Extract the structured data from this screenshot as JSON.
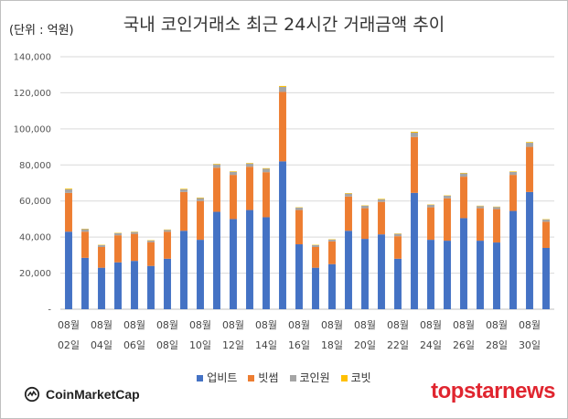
{
  "header": {
    "unit_label": "(단위 : 억원)",
    "title": "국내 코인거래소 최근 24시간 거래금액 추이"
  },
  "chart_data": {
    "type": "bar",
    "stacked": true,
    "categories": [
      "02일",
      "03일",
      "04일",
      "05일",
      "06일",
      "07일",
      "08일",
      "09일",
      "10일",
      "11일",
      "12일",
      "13일",
      "14일",
      "15일",
      "16일",
      "17일",
      "18일",
      "19일",
      "20일",
      "21일",
      "22일",
      "23일",
      "24일",
      "25일",
      "26일",
      "27일",
      "28일",
      "29일",
      "30일",
      "31일"
    ],
    "x_tick_labels": [
      {
        "month": "08월",
        "day": "02일"
      },
      {
        "month": "08월",
        "day": "04일"
      },
      {
        "month": "08월",
        "day": "06일"
      },
      {
        "month": "08월",
        "day": "08일"
      },
      {
        "month": "08월",
        "day": "10일"
      },
      {
        "month": "08월",
        "day": "12일"
      },
      {
        "month": "08월",
        "day": "14일"
      },
      {
        "month": "08월",
        "day": "16일"
      },
      {
        "month": "08월",
        "day": "18일"
      },
      {
        "month": "08월",
        "day": "20일"
      },
      {
        "month": "08월",
        "day": "22일"
      },
      {
        "month": "08월",
        "day": "24일"
      },
      {
        "month": "08월",
        "day": "26일"
      },
      {
        "month": "08월",
        "day": "28일"
      },
      {
        "month": "08월",
        "day": "30일"
      }
    ],
    "series": [
      {
        "name": "업비트",
        "color": "#4472c4",
        "values": [
          43000,
          28500,
          23000,
          26000,
          26800,
          24000,
          28000,
          43500,
          38500,
          54000,
          50000,
          55000,
          51000,
          82000,
          36000,
          23000,
          25000,
          43500,
          39000,
          41500,
          28000,
          64500,
          38500,
          38000,
          50500,
          38000,
          37000,
          54500,
          65000,
          34000
        ]
      },
      {
        "name": "빗썸",
        "color": "#ed7d31",
        "values": [
          21500,
          14500,
          11500,
          15000,
          15000,
          13200,
          15000,
          21500,
          21500,
          24500,
          24500,
          24000,
          25000,
          38500,
          19000,
          11500,
          12600,
          19000,
          17000,
          18000,
          12500,
          31000,
          18000,
          23500,
          23000,
          18000,
          18500,
          20000,
          25000,
          14500
        ]
      },
      {
        "name": "코인원",
        "color": "#a5a5a5",
        "values": [
          2000,
          1400,
          1000,
          1200,
          1000,
          900,
          1000,
          1500,
          1600,
          1800,
          1700,
          1800,
          1900,
          2800,
          1300,
          1000,
          1000,
          1600,
          1400,
          1400,
          1300,
          2400,
          1400,
          1400,
          1800,
          1200,
          1200,
          1600,
          2300,
          1200
        ]
      },
      {
        "name": "코빗",
        "color": "#ffc000",
        "values": [
          400,
          200,
          200,
          200,
          200,
          200,
          200,
          300,
          300,
          300,
          300,
          300,
          300,
          500,
          200,
          200,
          200,
          300,
          200,
          300,
          200,
          500,
          200,
          200,
          300,
          200,
          200,
          300,
          400,
          200
        ]
      }
    ],
    "y_ticks": [
      "-",
      "20,000",
      "40,000",
      "60,000",
      "80,000",
      "100,000",
      "120,000",
      "140,000"
    ],
    "ylim": [
      0,
      140000
    ],
    "grid": true,
    "legend_position": "bottom"
  },
  "logos": {
    "left": "CoinMarketCap",
    "right": "topstarnews"
  }
}
